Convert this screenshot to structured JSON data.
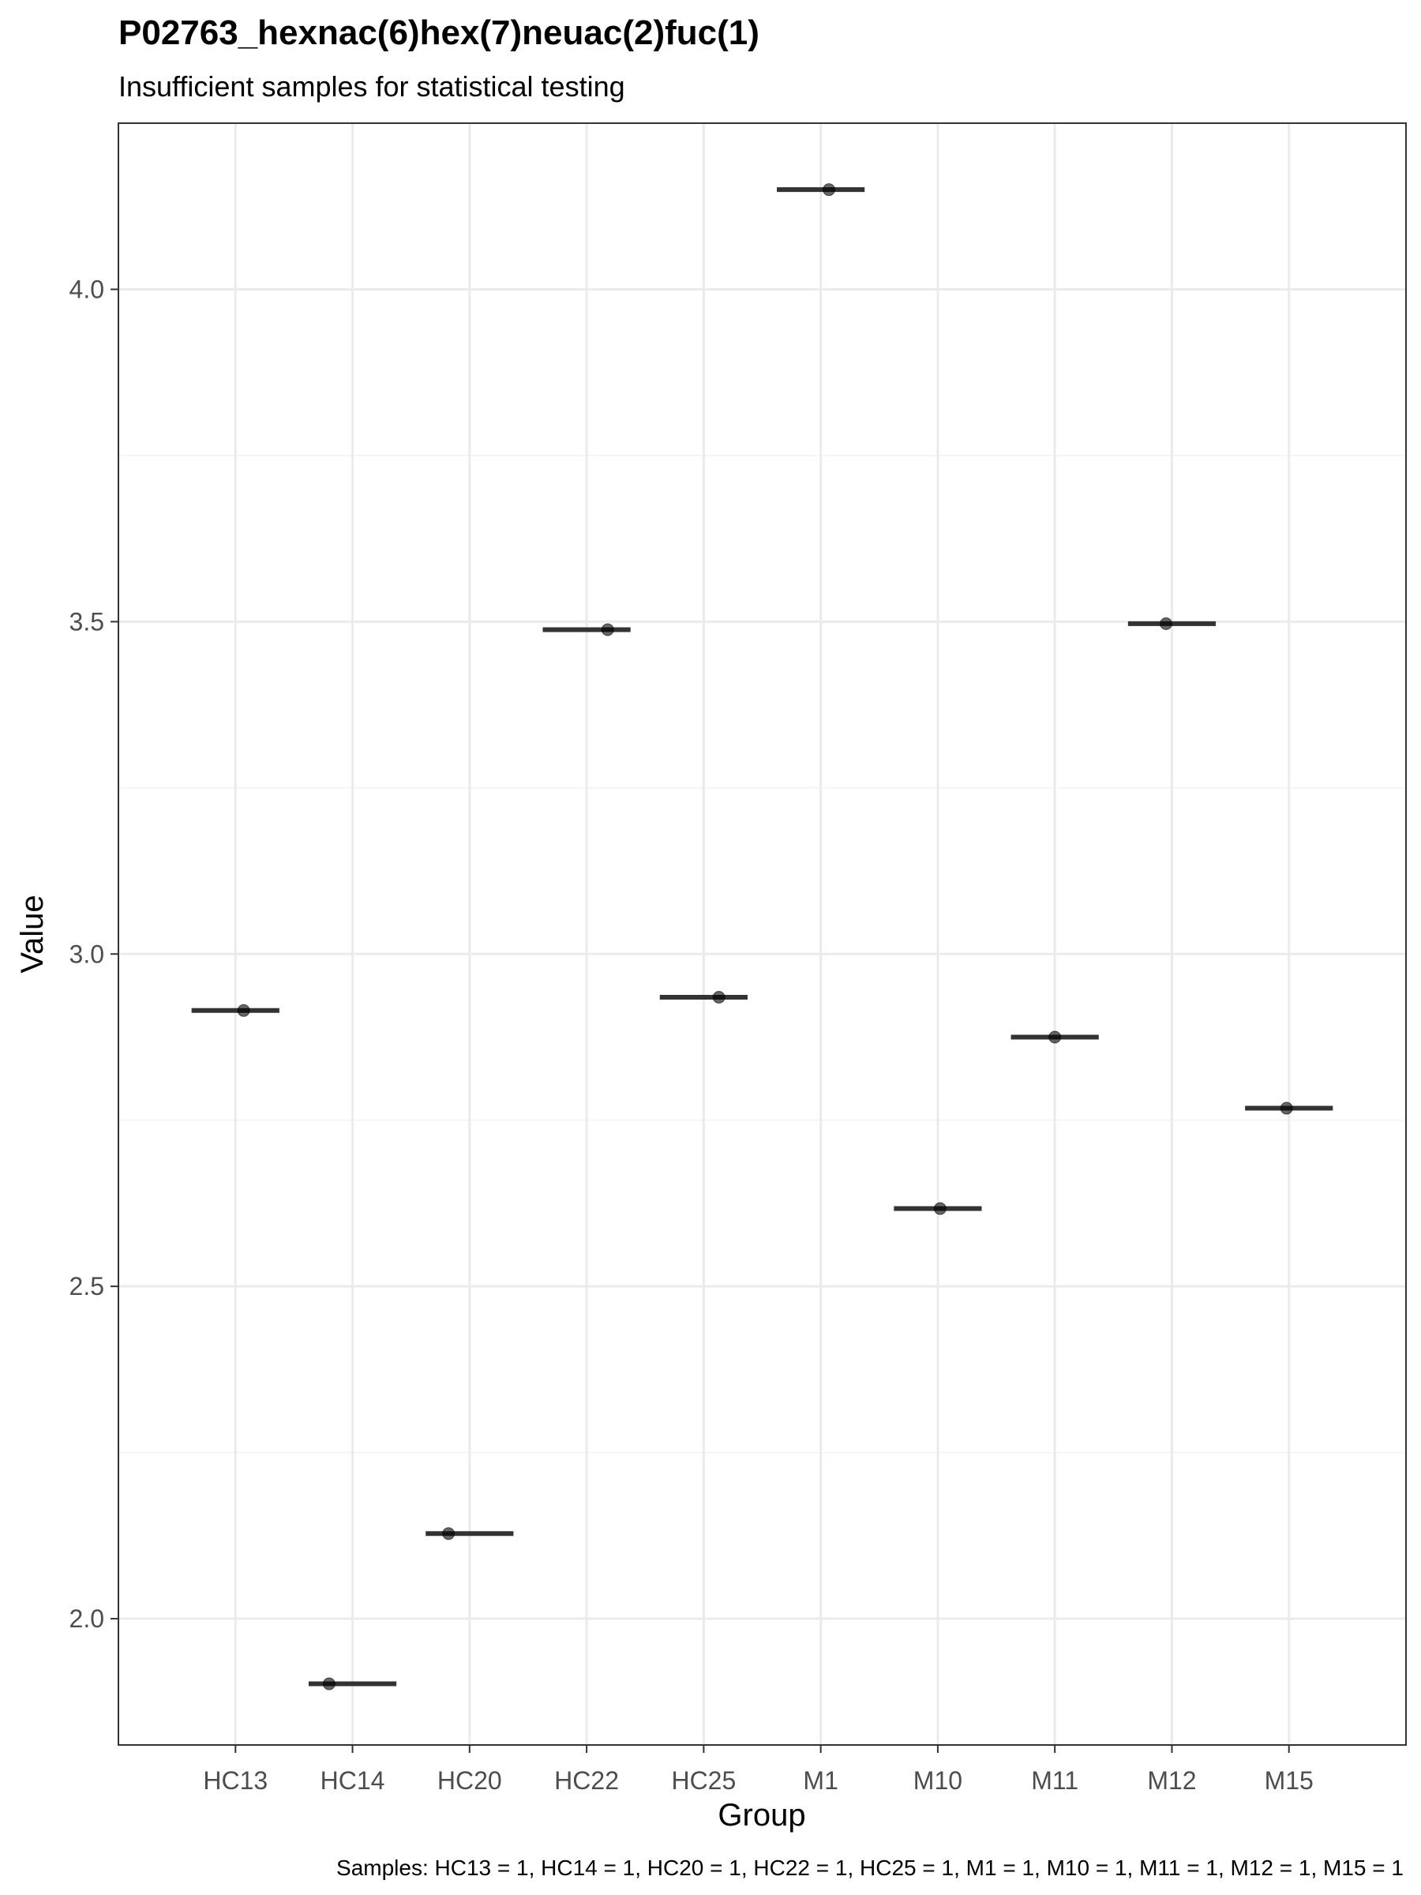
{
  "chart_data": {
    "type": "scatter",
    "title": "P02763_hexnac(6)hex(7)neuac(2)fuc(1)",
    "subtitle": "Insufficient samples for statistical testing",
    "xlabel": "Group",
    "ylabel": "Value",
    "caption": "Samples: HC13 = 1, HC14 = 1, HC20 = 1, HC22 = 1, HC25 = 1, M1 = 1, M10 = 1, M11 = 1, M12 = 1, M15 = 1",
    "categories": [
      "HC13",
      "HC14",
      "HC20",
      "HC22",
      "HC25",
      "M1",
      "M10",
      "M11",
      "M12",
      "M15"
    ],
    "values": [
      2.915,
      1.902,
      2.128,
      3.488,
      2.935,
      4.15,
      2.617,
      2.875,
      3.497,
      2.768
    ],
    "ylim": [
      1.81,
      4.25
    ],
    "yticks": [
      2.0,
      2.5,
      3.0,
      3.5,
      4.0
    ],
    "ytick_labels": [
      "2.0",
      "2.5",
      "3.0",
      "3.5",
      "4.0"
    ],
    "grid": true,
    "legend": "none",
    "colors": {
      "panel_border": "#333333",
      "grid_major": "#ebebeb",
      "grid_minor": "#f5f5f5",
      "marker": "#000000",
      "median_line": "#333333"
    }
  }
}
